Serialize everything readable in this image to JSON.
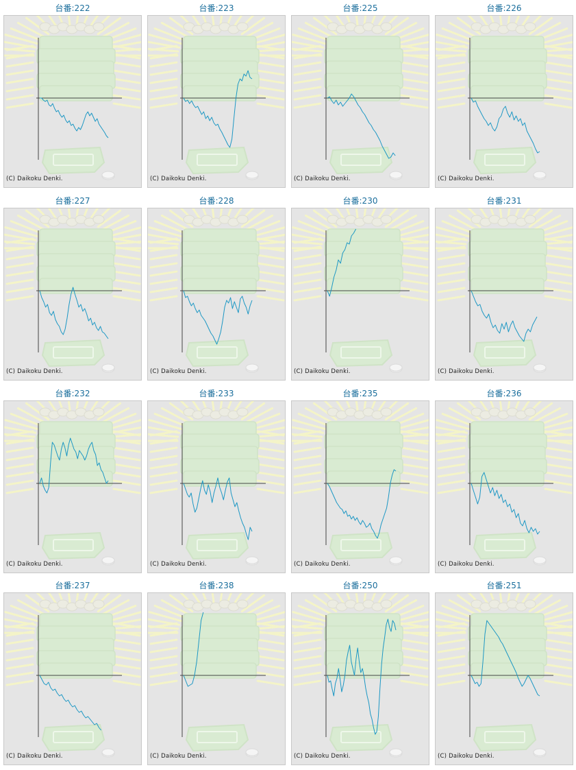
{
  "colors": {
    "title": "#1a6e9c",
    "line": "#1c97c4",
    "axis": "#555555",
    "panel_bg": "#e5e5e5"
  },
  "icons": [
    "slot-machine-watermark-icon"
  ],
  "credit": "(C) Daikoku Denki.",
  "charts": [
    {
      "label": "台番:222",
      "y": [
        0,
        0,
        -3,
        -5,
        -3,
        -10,
        -12,
        -8,
        -15,
        -20,
        -18,
        -24,
        -28,
        -25,
        -32,
        -36,
        -33,
        -40,
        -38,
        -44,
        -48,
        -43,
        -46,
        -40,
        -32,
        -24,
        -20,
        -26,
        -22,
        -28,
        -34,
        -30,
        -38,
        -42,
        -46,
        -50,
        -55,
        -58
      ]
    },
    {
      "label": "台番:223",
      "y": [
        0,
        -5,
        -3,
        -8,
        -4,
        -10,
        -14,
        -12,
        -18,
        -24,
        -20,
        -30,
        -26,
        -33,
        -28,
        -36,
        -40,
        -38,
        -45,
        -50,
        -56,
        -62,
        -68,
        -72,
        -60,
        -30,
        0,
        20,
        28,
        25,
        35,
        32,
        40,
        30,
        28
      ]
    },
    {
      "label": "台番:225",
      "y": [
        0,
        2,
        -4,
        -8,
        -3,
        -10,
        -6,
        -12,
        -8,
        -4,
        0,
        6,
        2,
        -4,
        -10,
        -14,
        -20,
        -24,
        -30,
        -36,
        -40,
        -46,
        -50,
        -56,
        -62,
        -70,
        -76,
        -82,
        -88,
        -86,
        -80,
        -84
      ]
    },
    {
      "label": "台番:226",
      "y": [
        0,
        -6,
        -4,
        -12,
        -18,
        -24,
        -30,
        -34,
        -40,
        -36,
        -44,
        -48,
        -42,
        -30,
        -26,
        -16,
        -12,
        -22,
        -28,
        -20,
        -32,
        -26,
        -34,
        -30,
        -40,
        -36,
        -48,
        -54,
        -60,
        -66,
        -74,
        -80,
        -78
      ]
    },
    {
      "label": "台番:227",
      "y": [
        0,
        -10,
        -16,
        -24,
        -20,
        -32,
        -36,
        -30,
        -42,
        -48,
        -52,
        -60,
        -64,
        -56,
        -40,
        -20,
        -5,
        5,
        -5,
        -14,
        -24,
        -20,
        -30,
        -26,
        -34,
        -44,
        -40,
        -50,
        -46,
        -54,
        -58,
        -52,
        -60,
        -62,
        -66,
        -70
      ]
    },
    {
      "label": "台番:228",
      "y": [
        0,
        -10,
        -8,
        -16,
        -22,
        -18,
        -26,
        -32,
        -28,
        -36,
        -40,
        -44,
        -50,
        -56,
        -62,
        -66,
        -72,
        -78,
        -70,
        -60,
        -44,
        -24,
        -14,
        -18,
        -10,
        -26,
        -16,
        -24,
        -32,
        -12,
        -8,
        -18,
        -24,
        -34,
        -22,
        -14
      ]
    },
    {
      "label": "台番:230",
      "y": [
        0,
        -8,
        5,
        20,
        30,
        45,
        40,
        55,
        60,
        70,
        68,
        80,
        84,
        90
      ]
    },
    {
      "label": "台番:231",
      "y": [
        0,
        -8,
        -16,
        -22,
        -20,
        -30,
        -36,
        -40,
        -34,
        -46,
        -54,
        -50,
        -58,
        -62,
        -48,
        -56,
        -46,
        -60,
        -50,
        -44,
        -54,
        -60,
        -66,
        -70,
        -74,
        -62,
        -56,
        -60,
        -50,
        -44,
        -38
      ]
    },
    {
      "label": "台番:232",
      "y": [
        0,
        8,
        -4,
        -10,
        -14,
        -6,
        30,
        60,
        56,
        48,
        40,
        34,
        50,
        60,
        52,
        40,
        56,
        66,
        58,
        50,
        46,
        36,
        48,
        44,
        40,
        34,
        40,
        50,
        56,
        60,
        48,
        42,
        26,
        30,
        20,
        16,
        8,
        0,
        4
      ]
    },
    {
      "label": "台番:233",
      "y": [
        0,
        -8,
        -16,
        -20,
        -14,
        -30,
        -42,
        -36,
        -22,
        -8,
        4,
        -10,
        -16,
        -2,
        -12,
        -28,
        -14,
        -4,
        8,
        -6,
        -14,
        -24,
        -10,
        2,
        8,
        -14,
        -24,
        -34,
        -28,
        -40,
        -50,
        -58,
        -64,
        -74,
        -82,
        -64,
        -70
      ]
    },
    {
      "label": "台番:235",
      "y": [
        0,
        -4,
        -10,
        -16,
        -22,
        -28,
        -32,
        -36,
        -38,
        -44,
        -40,
        -48,
        -46,
        -52,
        -48,
        -54,
        -50,
        -56,
        -60,
        -54,
        -58,
        -64,
        -62,
        -58,
        -66,
        -70,
        -76,
        -80,
        -72,
        -60,
        -52,
        -44,
        -36,
        -20,
        0,
        12,
        20,
        18
      ]
    },
    {
      "label": "台番:236",
      "y": [
        0,
        -10,
        -20,
        -30,
        -20,
        10,
        16,
        6,
        -4,
        -14,
        -6,
        -18,
        -10,
        -22,
        -16,
        -28,
        -24,
        -34,
        -30,
        -42,
        -38,
        -50,
        -44,
        -58,
        -62,
        -54,
        -66,
        -72,
        -64,
        -70,
        -66,
        -74,
        -70
      ]
    },
    {
      "label": "台番:237",
      "y": [
        0,
        -6,
        -12,
        -14,
        -10,
        -18,
        -22,
        -20,
        -26,
        -30,
        -28,
        -34,
        -38,
        -36,
        -42,
        -46,
        -44,
        -50,
        -54,
        -52,
        -58,
        -62,
        -60,
        -64,
        -68,
        -72,
        -70,
        -76,
        -80
      ]
    },
    {
      "label": "台番:238",
      "y": [
        0,
        -8,
        -16,
        -14,
        -12,
        0,
        20,
        50,
        80,
        100
      ]
    },
    {
      "label": "台番:250",
      "y": [
        0,
        -10,
        -8,
        -20,
        -30,
        -12,
        -4,
        10,
        -6,
        -24,
        -14,
        0,
        22,
        34,
        44,
        20,
        10,
        0,
        24,
        40,
        20,
        4,
        10,
        -2,
        -18,
        -30,
        -40,
        -56,
        -64,
        -76,
        -86,
        -82,
        -60,
        -20,
        16,
        40,
        56,
        74,
        82,
        70,
        64,
        80,
        76,
        66
      ]
    },
    {
      "label": "台番:251",
      "y": [
        0,
        -6,
        -12,
        -10,
        -16,
        -12,
        20,
        60,
        80,
        76,
        72,
        68,
        64,
        60,
        56,
        50,
        46,
        40,
        34,
        28,
        22,
        16,
        10,
        4,
        -4,
        -10,
        -16,
        -12,
        -6,
        0,
        -4,
        -10,
        -16,
        -22,
        -28,
        -30
      ]
    }
  ]
}
